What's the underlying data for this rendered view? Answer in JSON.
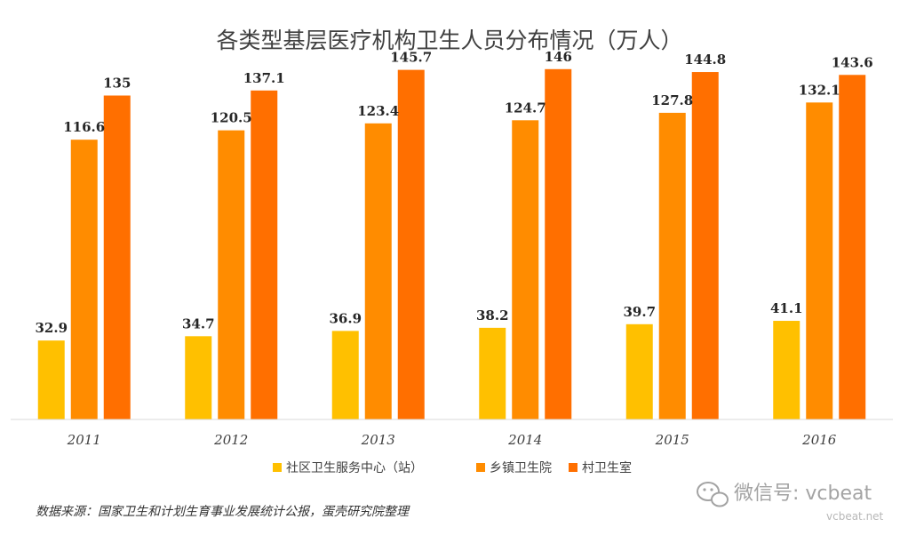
{
  "chart_data": {
    "type": "bar",
    "title": "各类型基层医疗机构卫生人员分布情况（万人）",
    "xlabel": "",
    "ylabel": "",
    "ylim": [
      0,
      160
    ],
    "categories": [
      "2011",
      "2012",
      "2013",
      "2014",
      "2015",
      "2016"
    ],
    "series": [
      {
        "name": "社区卫生服务中心（站）",
        "color": "#FFC000",
        "values": [
          32.9,
          34.7,
          36.9,
          38.2,
          39.7,
          41.1
        ],
        "labels": [
          "32.9",
          "34.7",
          "36.9",
          "38.2",
          "39.7",
          "41.1"
        ]
      },
      {
        "name": "乡镇卫生院",
        "color": "#FF8C00",
        "values": [
          116.6,
          120.5,
          123.4,
          124.7,
          127.8,
          132.1
        ],
        "labels": [
          "116.6",
          "120.5",
          "123.4",
          "124.7",
          "127.8",
          "132.1"
        ]
      },
      {
        "name": "村卫生室",
        "color": "#FF6F00",
        "values": [
          135,
          137.1,
          145.7,
          146,
          144.8,
          143.6
        ],
        "labels": [
          "135",
          "137.1",
          "145.7",
          "146",
          "144.8",
          "143.6"
        ]
      }
    ],
    "legend": "bottom",
    "grid": false
  },
  "source": "数据来源：国家卫生和计划生育事业发展统计公报，蛋壳研究院整理",
  "watermark": {
    "text": "微信号: vcbeat",
    "sub": "vcbeat.net"
  }
}
